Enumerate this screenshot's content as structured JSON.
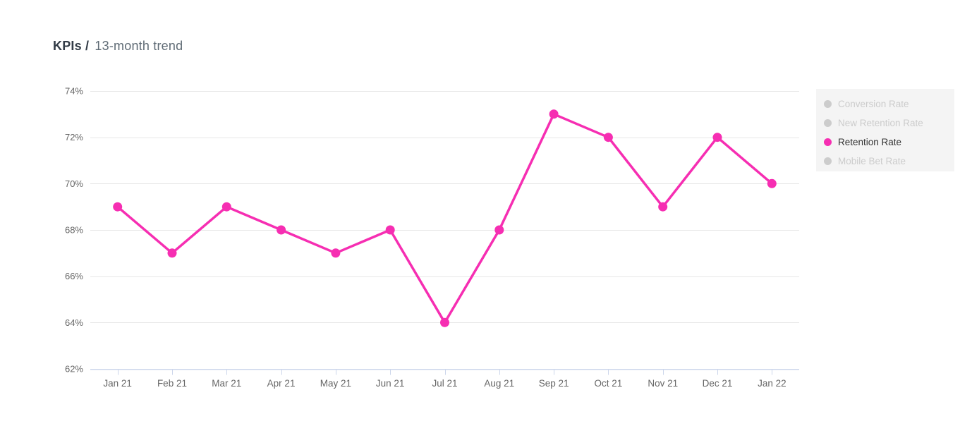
{
  "header": {
    "title_bold": "KPIs /",
    "title_regular": "13-month trend"
  },
  "chart_data": {
    "type": "line",
    "title": "KPIs / 13-month trend",
    "categories": [
      "Jan 21",
      "Feb 21",
      "Mar 21",
      "Apr 21",
      "May 21",
      "Jun 21",
      "Jul 21",
      "Aug 21",
      "Sep 21",
      "Oct 21",
      "Nov 21",
      "Dec 21",
      "Jan 22"
    ],
    "series": [
      {
        "name": "Retention Rate",
        "values": [
          69,
          67,
          69,
          68,
          67,
          68,
          64,
          68,
          73,
          72,
          69,
          72,
          70
        ],
        "color": "#f62eb2"
      }
    ],
    "ylim": [
      62,
      74
    ],
    "yticks": [
      62,
      64,
      66,
      68,
      70,
      72,
      74
    ],
    "ytick_suffix": "%",
    "grid": true,
    "legend_position": "right"
  },
  "legend": {
    "items": [
      {
        "label": "Conversion Rate",
        "active": false
      },
      {
        "label": "New Retention Rate",
        "active": false
      },
      {
        "label": "Retention Rate",
        "active": true
      },
      {
        "label": "Mobile Bet Rate",
        "active": false
      }
    ]
  },
  "colors": {
    "accent": "#f62eb2",
    "inactive": "#cccccc",
    "grid_line": "#e6e6e6",
    "axis_line": "#ccd6eb",
    "tick_label": "#666666",
    "legend_bg": "#f4f4f4",
    "legend_active_text": "#333333"
  }
}
